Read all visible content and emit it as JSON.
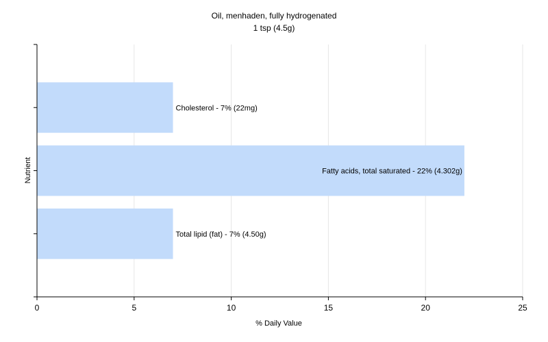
{
  "chart_data": {
    "type": "bar",
    "orientation": "horizontal",
    "title": "Oil, menhaden, fully hydrogenated",
    "subtitle": "1 tsp (4.5g)",
    "xlabel": "% Daily Value",
    "ylabel": "Nutrient",
    "xlim": [
      0,
      25
    ],
    "xticks": [
      0,
      5,
      10,
      15,
      20,
      25
    ],
    "grid": true,
    "legend": "none",
    "bar_color": "#c2dbfb",
    "bars": [
      {
        "category": "Total lipid (fat)",
        "value": 7,
        "label": "Total lipid (fat) - 7% (4.50g)"
      },
      {
        "category": "Fatty acids, total saturated",
        "value": 22,
        "label": "Fatty acids, total saturated - 22% (4.302g)"
      },
      {
        "category": "Cholesterol",
        "value": 7,
        "label": "Cholesterol - 7% (22mg)"
      }
    ]
  }
}
